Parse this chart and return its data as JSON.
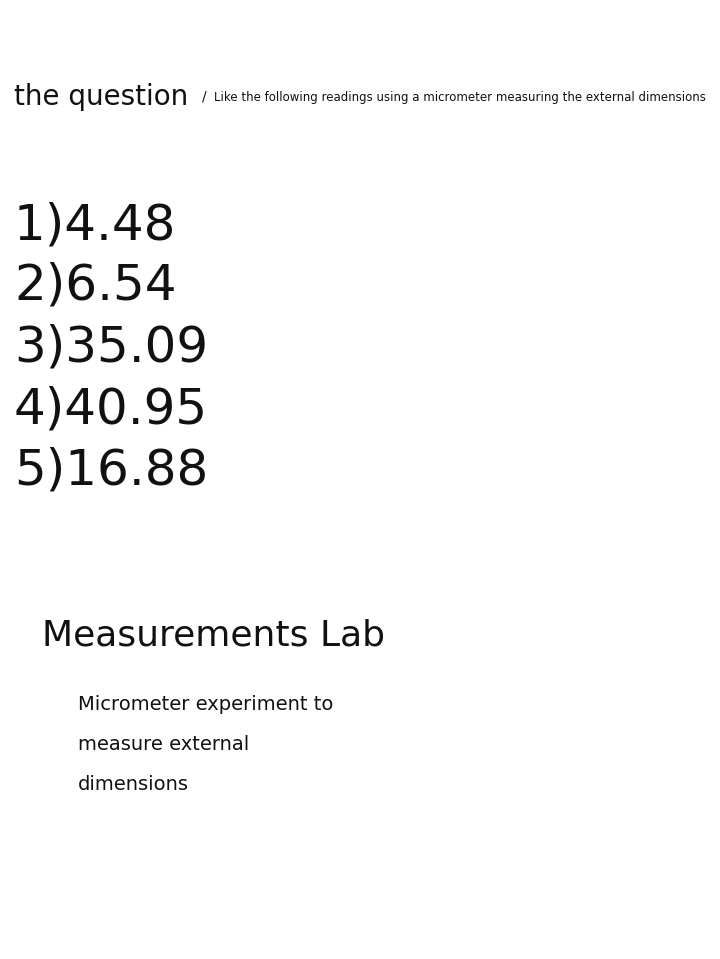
{
  "background_color": "#ffffff",
  "header_bold_text": "the question",
  "header_separator": "/",
  "header_small_text": "Like the following readings using a micrometer measuring the external dimensions",
  "header_bold_fontsize": 20,
  "header_small_fontsize": 8.5,
  "measurements": [
    "1)4.48",
    "2)6.54",
    "3)35.09",
    "4)40.95",
    "5)16.88"
  ],
  "measurements_fontsize": 36,
  "measurements_color": "#111111",
  "lab_title": "Measurements Lab",
  "lab_title_fontsize": 26,
  "lab_title_color": "#111111",
  "sub_lines": [
    "Micrometer experiment to",
    "measure external",
    "dimensions"
  ],
  "sub_lines_fontsize": 14,
  "sub_lines_color": "#111111"
}
